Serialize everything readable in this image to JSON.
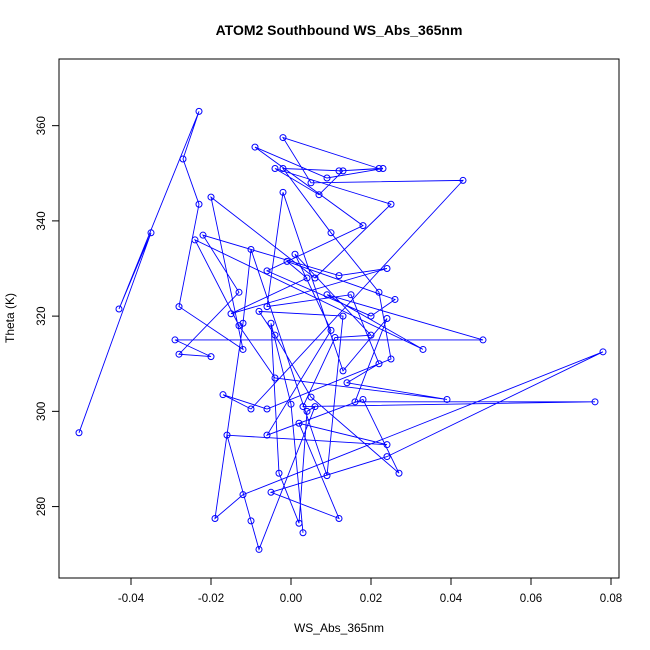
{
  "chart_data": {
    "type": "line",
    "title": "ATOM2 Southbound WS_Abs_365nm",
    "xlabel": "WS_Abs_365nm",
    "ylabel": "Theta (K)",
    "xlim": [
      -0.058,
      0.082
    ],
    "ylim": [
      265,
      374
    ],
    "x_ticks": [
      -0.04,
      -0.02,
      0.0,
      0.02,
      0.04,
      0.06,
      0.08
    ],
    "x_tick_labels": [
      "-0.04",
      "-0.02",
      "0.00",
      "0.02",
      "0.04",
      "0.06",
      "0.08"
    ],
    "y_ticks": [
      280,
      300,
      320,
      340,
      360
    ],
    "y_tick_labels": [
      "280",
      "300",
      "320",
      "340",
      "360"
    ],
    "grid": false,
    "marker": "open-circle",
    "color": "#0000ff",
    "series": [
      {
        "x": [
          -0.053,
          -0.035,
          -0.043,
          -0.023,
          -0.027,
          -0.023,
          -0.028,
          -0.012,
          -0.02,
          0.006,
          0.025,
          -0.004,
          0.007,
          0.013,
          -0.002,
          0.01,
          0.022,
          0.025,
          -0.006,
          -0.017,
          -0.01,
          0.043,
          0.005,
          -0.002,
          0.022,
          0.012,
          0.023,
          0.009,
          -0.009,
          0.018,
          -0.006,
          0.02,
          0.026,
          -0.001,
          0.004,
          -0.015,
          0.024,
          0.012,
          -0.022,
          -0.013,
          -0.028,
          -0.02,
          -0.029,
          0.048,
          0.009,
          0.033,
          -0.024,
          -0.013,
          -0.004,
          0.039,
          0.014,
          0.022,
          0.015,
          -0.006,
          -0.002,
          0.013,
          0.024,
          0.016,
          0.076,
          0.003,
          0.011,
          0.02,
          0.001,
          0.01,
          -0.006,
          0.018,
          0.027,
          0.005,
          -0.004,
          -0.008,
          0.013,
          0.009,
          -0.01,
          -0.012,
          -0.019,
          -0.012,
          0.078,
          0.024,
          -0.005,
          0.012,
          0.002,
          0.024,
          -0.016,
          -0.01,
          -0.008,
          0.006,
          0.004,
          0.002,
          -0.003,
          -0.005,
          0.0,
          0.003
        ],
        "y": [
          295.5,
          337.5,
          321.5,
          363,
          353,
          343.5,
          322,
          313,
          345,
          328,
          343.5,
          351,
          345.5,
          350.5,
          351,
          337.5,
          325,
          311,
          300.5,
          303.5,
          300.5,
          348.5,
          348,
          357.5,
          351,
          350.5,
          351,
          349,
          355.5,
          339,
          329.5,
          320,
          323.5,
          331.5,
          328,
          320.5,
          330,
          328.5,
          337,
          325,
          312,
          311.5,
          315,
          315,
          324.5,
          313,
          336,
          318,
          307,
          302.5,
          306,
          310,
          324.5,
          322,
          346,
          308.5,
          319.5,
          302,
          302,
          301,
          315.5,
          316,
          333,
          317,
          295,
          302.5,
          287,
          303,
          316,
          321,
          320,
          286.5,
          334,
          318.5,
          277.5,
          282.5,
          312.5,
          290.5,
          283,
          277.5,
          297.5,
          293,
          295,
          277,
          271,
          301,
          300,
          276.5,
          287,
          318.5,
          301.5,
          274.5
        ]
      }
    ]
  }
}
